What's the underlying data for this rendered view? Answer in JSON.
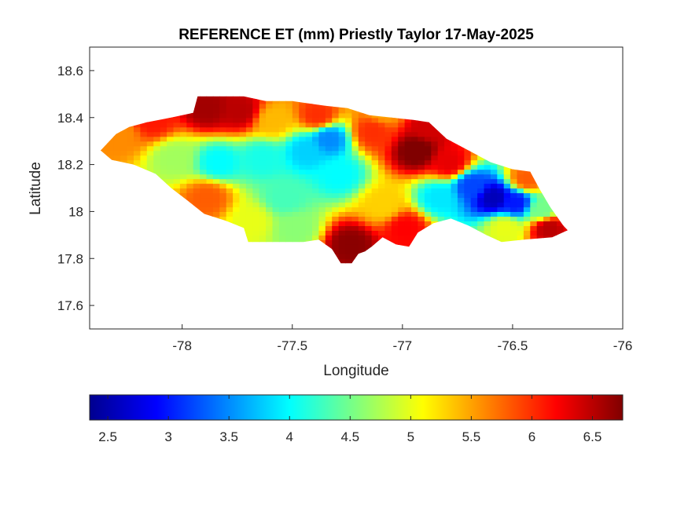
{
  "chart_data": {
    "type": "heatmap",
    "title": "REFERENCE ET (mm) Priestly Taylor 17-May-2025",
    "xlabel": "Longitude",
    "ylabel": "Latitude",
    "xlim": [
      -78.42,
      -76.0
    ],
    "ylim": [
      17.5,
      18.7
    ],
    "xticks": [
      -78,
      -77.5,
      -77,
      -76.5,
      -76
    ],
    "xtick_labels": [
      "-78",
      "-77.5",
      "-77",
      "-76.5",
      "-76"
    ],
    "yticks": [
      17.6,
      17.8,
      18,
      18.2,
      18.4,
      18.6
    ],
    "ytick_labels": [
      "17.6",
      "17.8",
      "18",
      "18.2",
      "18.4",
      "18.6"
    ],
    "colormap": "jet",
    "clim": [
      2.35,
      6.75
    ],
    "colorbar_location": "bottom",
    "colorbar_ticks": [
      2.5,
      3,
      3.5,
      4,
      4.5,
      5,
      5.5,
      6,
      6.5
    ],
    "colorbar_tick_labels": [
      "2.5",
      "3",
      "3.5",
      "4",
      "4.5",
      "5",
      "5.5",
      "6",
      "6.5"
    ],
    "grid": false,
    "field_points": [
      {
        "lon": -78.3,
        "lat": 18.32,
        "value": 5.6
      },
      {
        "lon": -78.15,
        "lat": 18.38,
        "value": 6.1
      },
      {
        "lon": -78.05,
        "lat": 18.22,
        "value": 4.7
      },
      {
        "lon": -77.9,
        "lat": 18.43,
        "value": 6.6
      },
      {
        "lon": -77.75,
        "lat": 18.42,
        "value": 6.5
      },
      {
        "lon": -77.6,
        "lat": 18.38,
        "value": 5.4
      },
      {
        "lon": -77.85,
        "lat": 18.2,
        "value": 4.0
      },
      {
        "lon": -77.65,
        "lat": 18.22,
        "value": 4.1
      },
      {
        "lon": -77.45,
        "lat": 18.25,
        "value": 3.8
      },
      {
        "lon": -77.35,
        "lat": 18.3,
        "value": 3.5
      },
      {
        "lon": -77.55,
        "lat": 18.05,
        "value": 4.3
      },
      {
        "lon": -77.7,
        "lat": 17.95,
        "value": 5.0
      },
      {
        "lon": -77.9,
        "lat": 18.05,
        "value": 5.8
      },
      {
        "lon": -77.5,
        "lat": 17.92,
        "value": 4.6
      },
      {
        "lon": -77.3,
        "lat": 18.15,
        "value": 4.0
      },
      {
        "lon": -77.25,
        "lat": 17.85,
        "value": 6.7
      },
      {
        "lon": -77.1,
        "lat": 18.02,
        "value": 5.3
      },
      {
        "lon": -77.0,
        "lat": 17.92,
        "value": 6.2
      },
      {
        "lon": -77.15,
        "lat": 18.33,
        "value": 6.0
      },
      {
        "lon": -76.95,
        "lat": 18.25,
        "value": 6.8
      },
      {
        "lon": -76.9,
        "lat": 18.35,
        "value": 6.4
      },
      {
        "lon": -76.8,
        "lat": 18.2,
        "value": 6.3
      },
      {
        "lon": -76.85,
        "lat": 18.05,
        "value": 3.9
      },
      {
        "lon": -76.7,
        "lat": 18.1,
        "value": 3.2
      },
      {
        "lon": -76.6,
        "lat": 18.05,
        "value": 2.6
      },
      {
        "lon": -76.5,
        "lat": 18.03,
        "value": 3.0
      },
      {
        "lon": -76.45,
        "lat": 18.13,
        "value": 5.8
      },
      {
        "lon": -76.38,
        "lat": 18.0,
        "value": 4.5
      },
      {
        "lon": -76.35,
        "lat": 17.92,
        "value": 6.5
      },
      {
        "lon": -76.55,
        "lat": 17.92,
        "value": 5.0
      },
      {
        "lon": -77.1,
        "lat": 18.42,
        "value": 5.5
      },
      {
        "lon": -77.4,
        "lat": 18.4,
        "value": 6.0
      }
    ]
  }
}
